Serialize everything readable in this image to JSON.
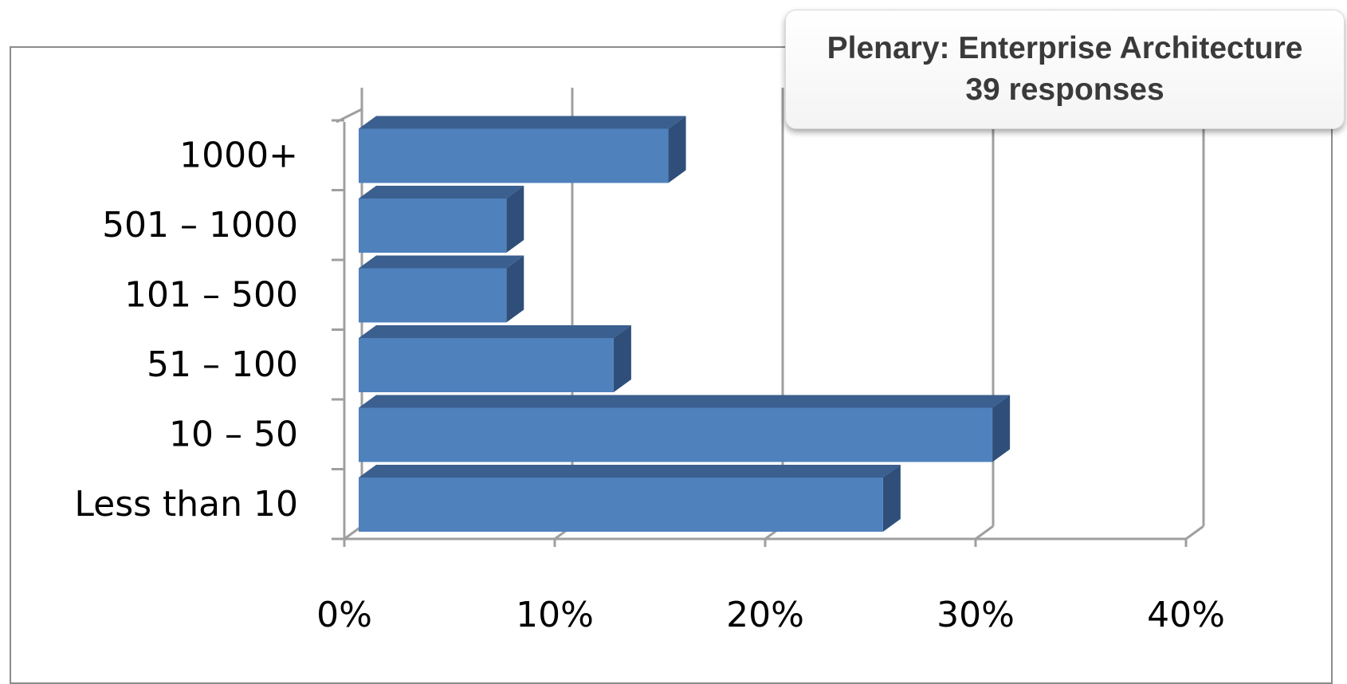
{
  "chart_data": {
    "type": "bar",
    "orientation": "horizontal",
    "style": "3d",
    "title": "Plenary: Enterprise Architecture",
    "subtitle": "39 responses",
    "categories": [
      "Less than 10",
      "10 – 50",
      "51 – 100",
      "101 – 500",
      "501 – 1000",
      "1000+"
    ],
    "values": [
      0.256,
      0.308,
      0.128,
      0.077,
      0.077,
      0.154
    ],
    "xlim": [
      0,
      0.4
    ],
    "x_ticks": [
      0,
      0.1,
      0.2,
      0.3,
      0.4
    ],
    "x_tick_labels": [
      "0%",
      "10%",
      "20%",
      "30%",
      "40%"
    ],
    "xlabel": "",
    "ylabel": "",
    "grid": true,
    "legend": "none",
    "colors": {
      "bar_front": "#4f81bd",
      "bar_top": "#3b5f8e",
      "bar_side": "#2f4f7a",
      "grid": "#9f9f9f"
    }
  }
}
